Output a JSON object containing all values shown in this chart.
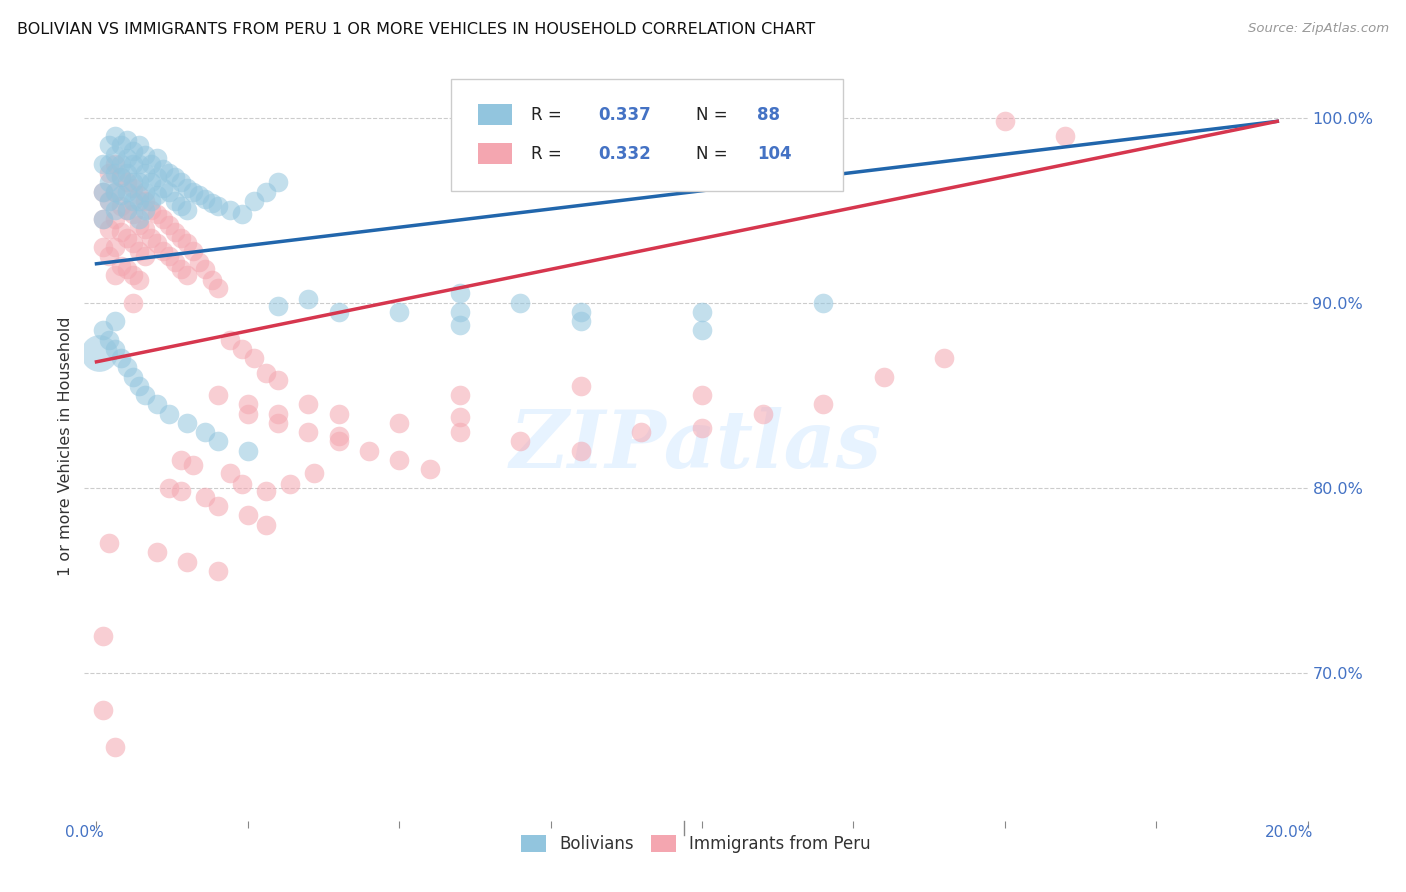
{
  "title": "BOLIVIAN VS IMMIGRANTS FROM PERU 1 OR MORE VEHICLES IN HOUSEHOLD CORRELATION CHART",
  "source": "Source: ZipAtlas.com",
  "ylabel": "1 or more Vehicles in Household",
  "watermark": "ZIPatlas",
  "legend_blue_label": "Bolivians",
  "legend_pink_label": "Immigrants from Peru",
  "blue_color": "#92c5de",
  "pink_color": "#f4a6b0",
  "line_blue_color": "#2166ac",
  "line_pink_color": "#d6364e",
  "blue_scatter": [
    [
      0.001,
      0.975
    ],
    [
      0.001,
      0.96
    ],
    [
      0.001,
      0.945
    ],
    [
      0.002,
      0.985
    ],
    [
      0.002,
      0.975
    ],
    [
      0.002,
      0.965
    ],
    [
      0.002,
      0.955
    ],
    [
      0.003,
      0.99
    ],
    [
      0.003,
      0.98
    ],
    [
      0.003,
      0.97
    ],
    [
      0.003,
      0.96
    ],
    [
      0.003,
      0.95
    ],
    [
      0.004,
      0.985
    ],
    [
      0.004,
      0.975
    ],
    [
      0.004,
      0.968
    ],
    [
      0.004,
      0.958
    ],
    [
      0.005,
      0.988
    ],
    [
      0.005,
      0.978
    ],
    [
      0.005,
      0.97
    ],
    [
      0.005,
      0.96
    ],
    [
      0.005,
      0.95
    ],
    [
      0.006,
      0.982
    ],
    [
      0.006,
      0.975
    ],
    [
      0.006,
      0.965
    ],
    [
      0.006,
      0.955
    ],
    [
      0.007,
      0.985
    ],
    [
      0.007,
      0.975
    ],
    [
      0.007,
      0.965
    ],
    [
      0.007,
      0.955
    ],
    [
      0.007,
      0.945
    ],
    [
      0.008,
      0.98
    ],
    [
      0.008,
      0.97
    ],
    [
      0.008,
      0.96
    ],
    [
      0.008,
      0.95
    ],
    [
      0.009,
      0.975
    ],
    [
      0.009,
      0.965
    ],
    [
      0.009,
      0.955
    ],
    [
      0.01,
      0.978
    ],
    [
      0.01,
      0.968
    ],
    [
      0.01,
      0.958
    ],
    [
      0.011,
      0.972
    ],
    [
      0.011,
      0.962
    ],
    [
      0.012,
      0.97
    ],
    [
      0.012,
      0.96
    ],
    [
      0.013,
      0.968
    ],
    [
      0.013,
      0.955
    ],
    [
      0.014,
      0.965
    ],
    [
      0.014,
      0.952
    ],
    [
      0.015,
      0.962
    ],
    [
      0.015,
      0.95
    ],
    [
      0.016,
      0.96
    ],
    [
      0.017,
      0.958
    ],
    [
      0.018,
      0.956
    ],
    [
      0.019,
      0.954
    ],
    [
      0.02,
      0.952
    ],
    [
      0.022,
      0.95
    ],
    [
      0.024,
      0.948
    ],
    [
      0.026,
      0.955
    ],
    [
      0.028,
      0.96
    ],
    [
      0.03,
      0.965
    ],
    [
      0.001,
      0.885
    ],
    [
      0.002,
      0.88
    ],
    [
      0.003,
      0.875
    ],
    [
      0.004,
      0.87
    ],
    [
      0.005,
      0.865
    ],
    [
      0.006,
      0.86
    ],
    [
      0.007,
      0.855
    ],
    [
      0.008,
      0.85
    ],
    [
      0.01,
      0.845
    ],
    [
      0.012,
      0.84
    ],
    [
      0.015,
      0.835
    ],
    [
      0.018,
      0.83
    ],
    [
      0.02,
      0.825
    ],
    [
      0.025,
      0.82
    ],
    [
      0.03,
      0.898
    ],
    [
      0.035,
      0.902
    ],
    [
      0.04,
      0.895
    ],
    [
      0.05,
      0.895
    ],
    [
      0.06,
      0.905
    ],
    [
      0.07,
      0.9
    ],
    [
      0.08,
      0.89
    ],
    [
      0.1,
      0.895
    ],
    [
      0.12,
      0.9
    ],
    [
      0.06,
      0.895
    ],
    [
      0.08,
      0.895
    ],
    [
      0.1,
      0.885
    ],
    [
      0.003,
      0.89
    ],
    [
      0.06,
      0.888
    ]
  ],
  "pink_scatter": [
    [
      0.001,
      0.96
    ],
    [
      0.001,
      0.945
    ],
    [
      0.001,
      0.93
    ],
    [
      0.001,
      0.72
    ],
    [
      0.002,
      0.97
    ],
    [
      0.002,
      0.955
    ],
    [
      0.002,
      0.94
    ],
    [
      0.002,
      0.925
    ],
    [
      0.003,
      0.975
    ],
    [
      0.003,
      0.96
    ],
    [
      0.003,
      0.945
    ],
    [
      0.003,
      0.93
    ],
    [
      0.003,
      0.915
    ],
    [
      0.004,
      0.968
    ],
    [
      0.004,
      0.952
    ],
    [
      0.004,
      0.938
    ],
    [
      0.004,
      0.92
    ],
    [
      0.005,
      0.965
    ],
    [
      0.005,
      0.95
    ],
    [
      0.005,
      0.935
    ],
    [
      0.005,
      0.918
    ],
    [
      0.006,
      0.962
    ],
    [
      0.006,
      0.948
    ],
    [
      0.006,
      0.932
    ],
    [
      0.006,
      0.915
    ],
    [
      0.006,
      0.9
    ],
    [
      0.007,
      0.958
    ],
    [
      0.007,
      0.942
    ],
    [
      0.007,
      0.928
    ],
    [
      0.007,
      0.912
    ],
    [
      0.008,
      0.955
    ],
    [
      0.008,
      0.94
    ],
    [
      0.008,
      0.925
    ],
    [
      0.009,
      0.95
    ],
    [
      0.009,
      0.935
    ],
    [
      0.01,
      0.948
    ],
    [
      0.01,
      0.932
    ],
    [
      0.011,
      0.945
    ],
    [
      0.011,
      0.928
    ],
    [
      0.012,
      0.942
    ],
    [
      0.012,
      0.925
    ],
    [
      0.013,
      0.938
    ],
    [
      0.013,
      0.922
    ],
    [
      0.014,
      0.935
    ],
    [
      0.014,
      0.918
    ],
    [
      0.015,
      0.932
    ],
    [
      0.015,
      0.915
    ],
    [
      0.016,
      0.928
    ],
    [
      0.017,
      0.922
    ],
    [
      0.018,
      0.918
    ],
    [
      0.019,
      0.912
    ],
    [
      0.02,
      0.908
    ],
    [
      0.022,
      0.88
    ],
    [
      0.024,
      0.875
    ],
    [
      0.026,
      0.87
    ],
    [
      0.028,
      0.862
    ],
    [
      0.03,
      0.858
    ],
    [
      0.025,
      0.84
    ],
    [
      0.03,
      0.835
    ],
    [
      0.035,
      0.83
    ],
    [
      0.04,
      0.828
    ],
    [
      0.012,
      0.8
    ],
    [
      0.014,
      0.798
    ],
    [
      0.018,
      0.795
    ],
    [
      0.02,
      0.79
    ],
    [
      0.025,
      0.785
    ],
    [
      0.028,
      0.78
    ],
    [
      0.002,
      0.77
    ],
    [
      0.01,
      0.765
    ],
    [
      0.015,
      0.76
    ],
    [
      0.02,
      0.755
    ],
    [
      0.001,
      0.68
    ],
    [
      0.003,
      0.66
    ],
    [
      0.04,
      0.84
    ],
    [
      0.05,
      0.835
    ],
    [
      0.06,
      0.83
    ],
    [
      0.07,
      0.825
    ],
    [
      0.08,
      0.82
    ],
    [
      0.1,
      0.85
    ],
    [
      0.12,
      0.845
    ],
    [
      0.14,
      0.87
    ],
    [
      0.16,
      0.99
    ],
    [
      0.09,
      0.83
    ],
    [
      0.11,
      0.84
    ],
    [
      0.06,
      0.85
    ],
    [
      0.08,
      0.855
    ],
    [
      0.06,
      0.838
    ],
    [
      0.1,
      0.832
    ],
    [
      0.13,
      0.86
    ],
    [
      0.15,
      0.998
    ],
    [
      0.03,
      0.84
    ],
    [
      0.035,
      0.845
    ],
    [
      0.04,
      0.825
    ],
    [
      0.045,
      0.82
    ],
    [
      0.05,
      0.815
    ],
    [
      0.055,
      0.81
    ],
    [
      0.02,
      0.85
    ],
    [
      0.025,
      0.845
    ],
    [
      0.014,
      0.815
    ],
    [
      0.016,
      0.812
    ],
    [
      0.022,
      0.808
    ],
    [
      0.024,
      0.802
    ],
    [
      0.028,
      0.798
    ],
    [
      0.032,
      0.802
    ],
    [
      0.036,
      0.808
    ]
  ],
  "blue_line_x": [
    0.0,
    0.195
  ],
  "blue_line_y": [
    0.921,
    0.998
  ],
  "pink_line_x": [
    0.0,
    0.195
  ],
  "pink_line_y": [
    0.868,
    0.998
  ],
  "xlim": [
    -0.002,
    0.195
  ],
  "ylim": [
    0.62,
    1.025
  ],
  "yticks_right": [
    1.0,
    0.9,
    0.8,
    0.7
  ],
  "yticklabels_right": [
    "100.0%",
    "90.0%",
    "80.0%",
    "70.0%"
  ],
  "grid_color": "#cccccc",
  "bg_color": "#ffffff",
  "title_fontsize": 11.5,
  "axis_label_color": "#4472c4",
  "legend_text_color": "#4472c4"
}
